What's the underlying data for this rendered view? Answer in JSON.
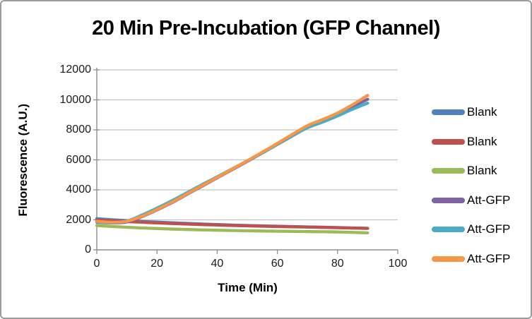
{
  "chart_data": {
    "type": "line",
    "title": "20 Min Pre-Incubation (GFP Channel)",
    "xlabel": "Time (Min)",
    "ylabel": "Fluorescence (A.U.)",
    "xlim": [
      0,
      100
    ],
    "ylim": [
      0,
      12000
    ],
    "x_ticks": [
      0,
      20,
      40,
      60,
      80,
      100
    ],
    "y_ticks": [
      0,
      2000,
      4000,
      6000,
      8000,
      10000,
      12000
    ],
    "grid": "horizontal",
    "legend_position": "right",
    "x": [
      0,
      5,
      10,
      15,
      20,
      25,
      30,
      35,
      40,
      45,
      50,
      55,
      60,
      65,
      70,
      75,
      80,
      85,
      90
    ],
    "series": [
      {
        "name": "Blank",
        "color": "#4F81BD",
        "values": [
          2080,
          2005,
          1950,
          1895,
          1850,
          1805,
          1762,
          1720,
          1686,
          1652,
          1624,
          1598,
          1574,
          1552,
          1530,
          1508,
          1486,
          1455,
          1430
        ]
      },
      {
        "name": "Blank",
        "color": "#C0504D",
        "values": [
          1990,
          1935,
          1885,
          1840,
          1795,
          1755,
          1720,
          1685,
          1655,
          1625,
          1600,
          1578,
          1556,
          1536,
          1516,
          1496,
          1476,
          1452,
          1435
        ]
      },
      {
        "name": "Blank",
        "color": "#9BBB59",
        "values": [
          1620,
          1560,
          1505,
          1460,
          1420,
          1385,
          1355,
          1330,
          1308,
          1288,
          1270,
          1255,
          1242,
          1230,
          1218,
          1206,
          1192,
          1165,
          1130
        ]
      },
      {
        "name": "Att-GFP",
        "color": "#8064A2",
        "values": [
          1845,
          1795,
          1860,
          2210,
          2660,
          3150,
          3700,
          4250,
          4800,
          5350,
          5900,
          6460,
          7030,
          7600,
          8160,
          8600,
          9060,
          9550,
          10040
        ]
      },
      {
        "name": "Att-GFP",
        "color": "#4BACC6",
        "values": [
          1870,
          1815,
          1920,
          2320,
          2780,
          3280,
          3810,
          4350,
          4870,
          5400,
          5930,
          6470,
          7040,
          7620,
          8140,
          8520,
          8930,
          9380,
          9780
        ]
      },
      {
        "name": "Att-GFP",
        "color": "#F79646",
        "values": [
          1905,
          1835,
          1905,
          2240,
          2690,
          3180,
          3730,
          4280,
          4830,
          5380,
          5940,
          6510,
          7100,
          7700,
          8280,
          8690,
          9120,
          9680,
          10300
        ]
      }
    ]
  }
}
